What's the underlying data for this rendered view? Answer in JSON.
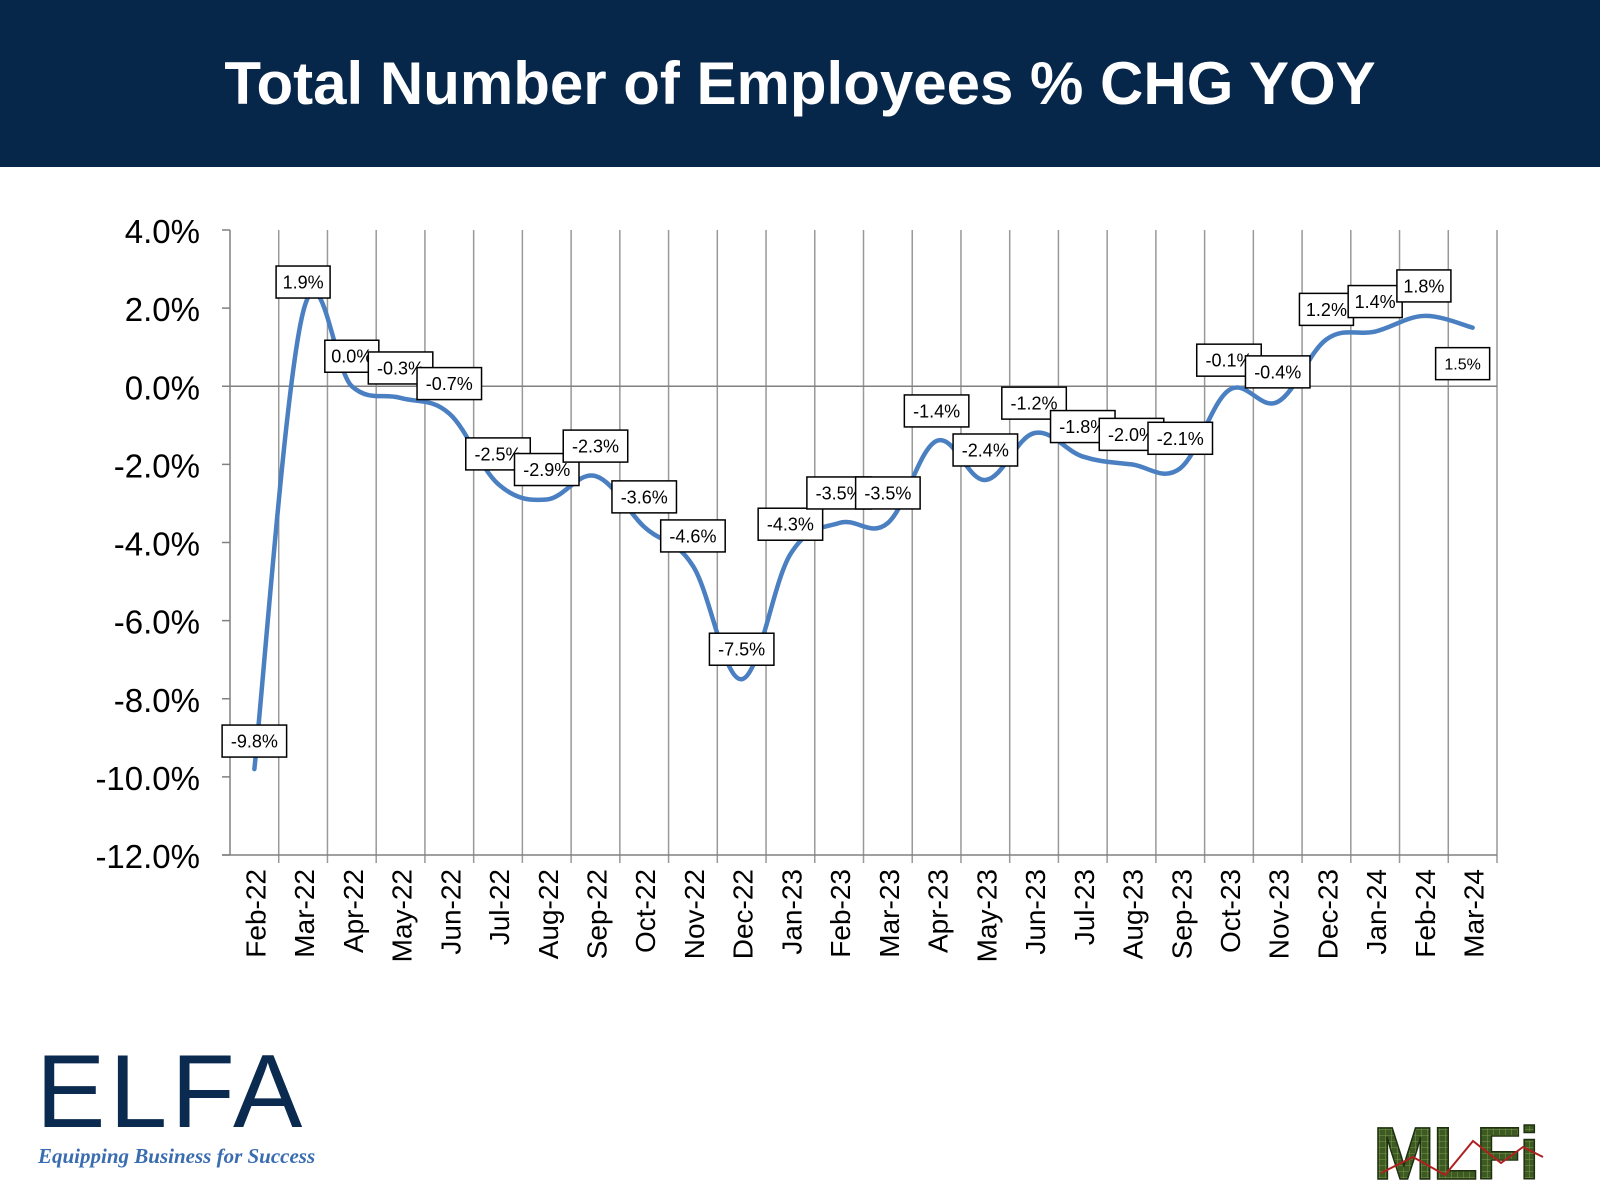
{
  "page": {
    "title": "Total Number of Employees % CHG YOY"
  },
  "logos": {
    "elfa_letters": "ELFA",
    "elfa_tagline": "Equipping Business for Success",
    "mlfi_text": "MLFi"
  },
  "colors": {
    "banner": "#06264a",
    "line": "#4a7fc1",
    "grid": "#999999",
    "axis": "#808080"
  },
  "chart_data": {
    "type": "line",
    "title": "Total Number of Employees % CHG YOY",
    "xlabel": "",
    "ylabel": "",
    "categories": [
      "Feb-22",
      "Mar-22",
      "Apr-22",
      "May-22",
      "Jun-22",
      "Jul-22",
      "Aug-22",
      "Sep-22",
      "Oct-22",
      "Nov-22",
      "Dec-22",
      "Jan-23",
      "Feb-23",
      "Mar-23",
      "Apr-23",
      "May-23",
      "Jun-23",
      "Jul-23",
      "Aug-23",
      "Sep-23",
      "Oct-23",
      "Nov-23",
      "Dec-23",
      "Jan-24",
      "Feb-24",
      "Mar-24"
    ],
    "series": [
      {
        "values": [
          -9.8,
          1.9,
          0.0,
          -0.3,
          -0.7,
          -2.5,
          -2.9,
          -2.3,
          -3.6,
          -4.6,
          -7.5,
          -4.3,
          -3.5,
          -3.5,
          -1.4,
          -2.4,
          -1.2,
          -1.8,
          -2.0,
          -2.1,
          -0.1,
          -0.4,
          1.2,
          1.4,
          1.8,
          1.5
        ],
        "labels": [
          "-9.8%",
          "1.9%",
          "0.0%",
          "-0.3%",
          "-0.7%",
          "-2.5%",
          "-2.9%",
          "-2.3%",
          "-3.6%",
          "-4.6%",
          "-7.5%",
          "-4.3%",
          "-3.5%",
          "-3.5%",
          "-1.4%",
          "-2.4%",
          "-1.2%",
          "-1.8%",
          "-2.0%",
          "-2.1%",
          "-0.1%",
          "-0.4%",
          "1.2%",
          "1.4%",
          "1.8%",
          "1.5%"
        ]
      }
    ],
    "ylim": [
      -12.0,
      4.0
    ],
    "yticks": [
      4.0,
      2.0,
      0.0,
      -2.0,
      -4.0,
      -6.0,
      -8.0,
      -10.0,
      -12.0
    ],
    "ytick_labels": [
      "4.0%",
      "2.0%",
      "0.0%",
      "-2.0%",
      "-4.0%",
      "-6.0%",
      "-8.0%",
      "-10.0%",
      "-12.0%"
    ],
    "grid": "vertical",
    "legend": "none"
  }
}
